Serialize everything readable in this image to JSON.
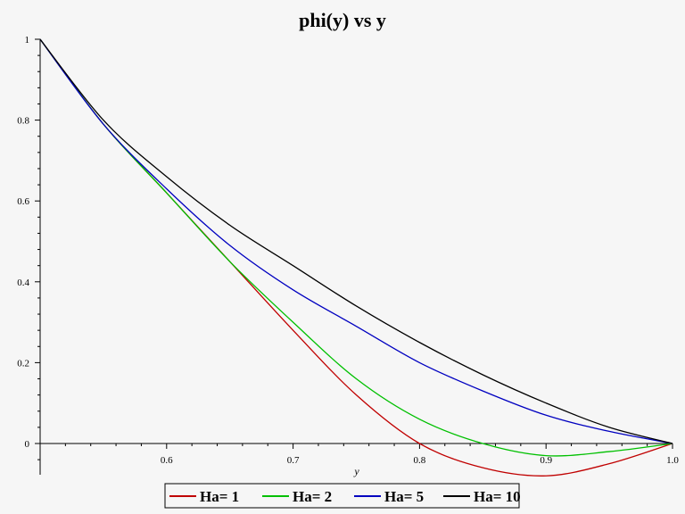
{
  "chart_data": {
    "type": "line",
    "title": "phi(y) vs y",
    "xlabel": "y",
    "ylabel": "",
    "xlim": [
      0.5,
      1.0
    ],
    "ylim": [
      -0.08,
      1.0
    ],
    "xticks": [
      0.6,
      0.7,
      0.8,
      0.9,
      1.0
    ],
    "xtick_labels": [
      "0.6",
      "0.7",
      "0.8",
      "0.9",
      "1.0"
    ],
    "yticks": [
      0,
      0.2,
      0.4,
      0.6,
      0.8,
      1
    ],
    "ytick_labels": [
      "0",
      "0.2",
      "0.4",
      "0.6",
      "0.8",
      "1"
    ],
    "grid": false,
    "legend_position": "bottom-center",
    "x": [
      0.5,
      0.55,
      0.6,
      0.65,
      0.7,
      0.75,
      0.8,
      0.85,
      0.9,
      0.95,
      1.0
    ],
    "series": [
      {
        "name": "Ha= 1",
        "color": "#c00000",
        "values": [
          1.0,
          0.79,
          0.62,
          0.45,
          0.28,
          0.12,
          0.0,
          -0.06,
          -0.08,
          -0.05,
          0.0
        ]
      },
      {
        "name": "Ha= 2",
        "color": "#00c000",
        "values": [
          1.0,
          0.79,
          0.62,
          0.45,
          0.3,
          0.16,
          0.06,
          0.0,
          -0.03,
          -0.02,
          0.0
        ]
      },
      {
        "name": "Ha= 5",
        "color": "#0000c0",
        "values": [
          1.0,
          0.79,
          0.63,
          0.49,
          0.38,
          0.29,
          0.2,
          0.13,
          0.07,
          0.03,
          0.0
        ]
      },
      {
        "name": "Ha= 10",
        "color": "#000000",
        "values": [
          1.0,
          0.8,
          0.66,
          0.54,
          0.44,
          0.34,
          0.25,
          0.17,
          0.1,
          0.04,
          0.0
        ]
      }
    ]
  }
}
